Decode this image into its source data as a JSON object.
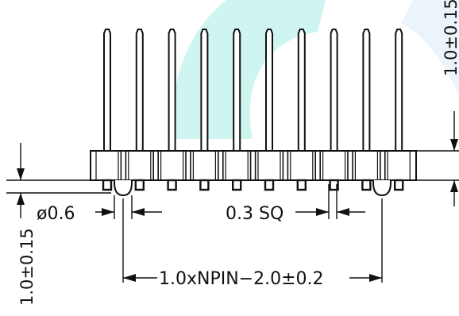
{
  "colors": {
    "line": "#111111",
    "watermark_teal": "#a8ece6",
    "watermark_blue": "#e2effa"
  },
  "drawing": {
    "pin_count": 10,
    "labels": {
      "pin_diameter": "ø0.6",
      "pin_square": "0.3  SQ",
      "overall_length": "1.0xNPIN−2.0±0.2",
      "left_height": "1.0±0.15",
      "right_height": "1.0±0.15"
    }
  }
}
